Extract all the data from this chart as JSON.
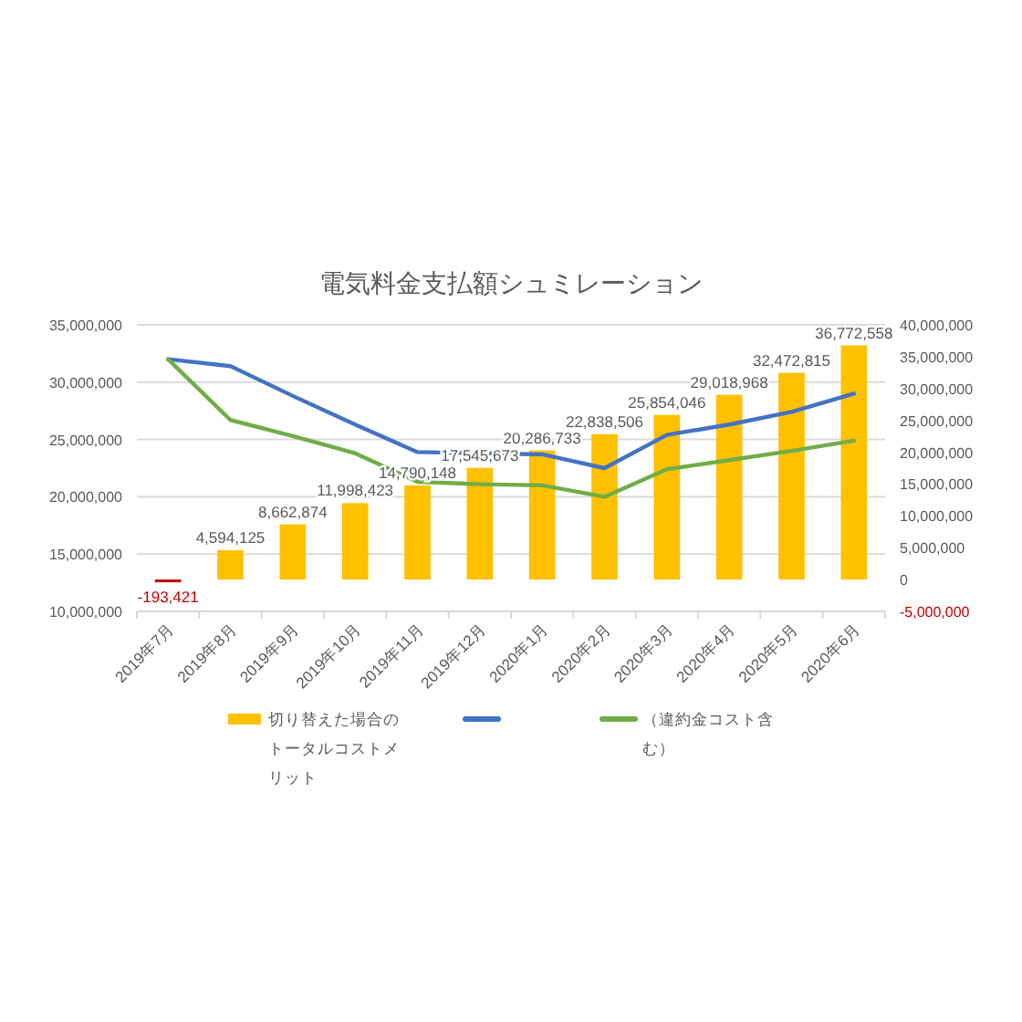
{
  "chart_data": {
    "type": "bar",
    "title": "電気料金支払額シュミレーション",
    "categories": [
      "2019年7月",
      "2019年8月",
      "2019年9月",
      "2019年10月",
      "2019年11月",
      "2019年12月",
      "2020年1月",
      "2020年2月",
      "2020年3月",
      "2020年4月",
      "2020年5月",
      "2020年6月"
    ],
    "series": [
      {
        "name": "切り替えた場合のトータルコストメリット",
        "axis": "y2",
        "color": "#ffc000",
        "colors": [
          "#c00000",
          "#ffc000",
          "#ffc000",
          "#ffc000",
          "#ffc000",
          "#ffc000",
          "#ffc000",
          "#ffc000",
          "#ffc000",
          "#ffc000",
          "#ffc000",
          "#ffc000"
        ],
        "values": [
          -193421,
          4594125,
          8662874,
          11998423,
          14790148,
          17545673,
          20286733,
          22838506,
          25854046,
          29018968,
          32472815,
          36772558
        ],
        "value_labels": [
          "-193,421",
          "4,594,125",
          "8,662,874",
          "11,998,423",
          "14,790,148",
          "17,545,673",
          "20,286,733",
          "22,838,506",
          "25,854,046",
          "29,018,968",
          "32,472,815",
          "36,772,558"
        ]
      },
      {
        "type": "line",
        "color": "#4472c4",
        "values": [
          32000000,
          31400000,
          28800000,
          26300000,
          23900000,
          23800000,
          23700000,
          22500000,
          25400000,
          26300000,
          27400000,
          29000000
        ]
      },
      {
        "name": "（違約金コスト含む）",
        "type": "line",
        "color": "#70ad47",
        "values": [
          32000000,
          26700000,
          25300000,
          23800000,
          21300000,
          21100000,
          21000000,
          20000000,
          22400000,
          23200000,
          24000000,
          24900000
        ]
      }
    ],
    "ylim": [
      10000000,
      35000000
    ],
    "yticks": [
      {
        "value": 10000000,
        "label": "10,000,000"
      },
      {
        "value": 15000000,
        "label": "15,000,000"
      },
      {
        "value": 20000000,
        "label": "20,000,000"
      },
      {
        "value": 25000000,
        "label": "25,000,000"
      },
      {
        "value": 30000000,
        "label": "30,000,000"
      },
      {
        "value": 35000000,
        "label": "35,000,000"
      }
    ],
    "y2lim": [
      -5000000,
      40000000
    ],
    "y2ticks": [
      {
        "value": -5000000,
        "label": "-5,000,000"
      },
      0,
      {
        "value": 5000000,
        "label": "5,000,000"
      },
      {
        "value": 10000000,
        "label": "10,000,000"
      },
      {
        "value": 15000000,
        "label": "15,000,000"
      },
      {
        "value": 20000000,
        "label": "20,000,000"
      },
      {
        "value": 25000000,
        "label": "25,000,000"
      },
      {
        "value": 30000000,
        "label": "30,000,000"
      },
      {
        "value": 35000000,
        "label": "35,000,000"
      },
      {
        "value": 40000000,
        "label": "40,000,000"
      }
    ],
    "grid": "y",
    "legend": "bottom",
    "line_style": "solid",
    "marker": "none"
  }
}
